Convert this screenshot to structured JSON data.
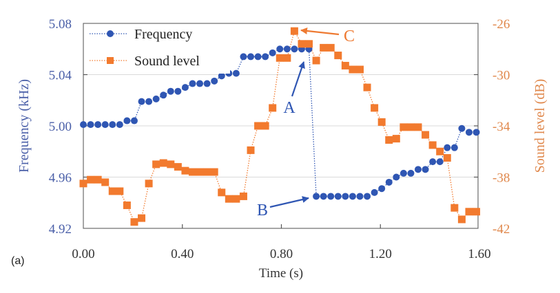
{
  "panel_label": "(a)",
  "chart_data": {
    "type": "line",
    "title": "",
    "xlabel": "Time (s)",
    "ylabel": "Frequency (kHz)",
    "y2label": "Sound level (dB)",
    "xlim": [
      0,
      1.6
    ],
    "ylim": [
      4.92,
      5.08
    ],
    "y2lim": [
      -42,
      -26
    ],
    "xticks": [
      "0.00",
      "0.40",
      "0.80",
      "1.20",
      "1.60"
    ],
    "xtick_values": [
      0,
      0.4,
      0.8,
      1.2,
      1.6
    ],
    "yticks": [
      "5.08",
      "5.04",
      "5.00",
      "4.96",
      "4.92"
    ],
    "ytick_values": [
      5.08,
      5.04,
      5.0,
      4.96,
      4.92
    ],
    "y2ticks": [
      "-26",
      "-30",
      "-34",
      "-38",
      "-42"
    ],
    "y2tick_values": [
      -26,
      -30,
      -34,
      -38,
      -42
    ],
    "grid": true,
    "legend_position": "top-left",
    "colors": {
      "frequency": "#2f56b3",
      "sound_level": "#f27a2e",
      "left_axis_text": "#4a5fa8",
      "right_axis_text": "#e0884c",
      "annotation_blue": "#2f56b3",
      "annotation_orange": "#ee7a32"
    },
    "time_step": 0.0294,
    "series": [
      {
        "name": "Frequency",
        "axis": "left",
        "marker": "circle",
        "values": [
          5.001,
          5.001,
          5.001,
          5.001,
          5.001,
          5.001,
          5.004,
          5.004,
          5.019,
          5.019,
          5.021,
          5.024,
          5.027,
          5.027,
          5.03,
          5.033,
          5.033,
          5.033,
          5.035,
          5.039,
          5.041,
          5.041,
          5.054,
          5.054,
          5.054,
          5.054,
          5.057,
          5.06,
          5.06,
          5.06,
          5.06,
          5.06,
          4.945,
          4.945,
          4.945,
          4.945,
          4.945,
          4.945,
          4.945,
          4.945,
          4.948,
          4.951,
          4.956,
          4.96,
          4.963,
          4.963,
          4.966,
          4.966,
          4.972,
          4.972,
          4.983,
          4.983,
          4.998,
          4.995,
          4.995
        ]
      },
      {
        "name": "Sound level",
        "axis": "right",
        "marker": "square",
        "values": [
          -38.5,
          -38.2,
          -38.2,
          -38.4,
          -39.1,
          -39.1,
          -40.2,
          -41.5,
          -41.2,
          -38.5,
          -37.0,
          -36.9,
          -37.0,
          -37.2,
          -37.5,
          -37.6,
          -37.6,
          -37.6,
          -37.6,
          -39.2,
          -39.7,
          -39.7,
          -39.5,
          -35.9,
          -34.0,
          -34.0,
          -32.6,
          -28.7,
          -28.7,
          -26.6,
          -27.6,
          -27.6,
          -28.9,
          -27.9,
          -27.9,
          -28.5,
          -29.3,
          -29.6,
          -29.6,
          -31.0,
          -32.6,
          -33.7,
          -35.1,
          -35.0,
          -34.1,
          -34.1,
          -34.1,
          -34.7,
          -35.5,
          -36.0,
          -36.5,
          -40.4,
          -41.3,
          -40.7,
          -40.7
        ]
      }
    ],
    "annotations": [
      {
        "label": "A",
        "series": "Frequency",
        "point_index": 31,
        "color_key": "annotation_blue"
      },
      {
        "label": "B",
        "series": "Frequency",
        "point_index": 32,
        "color_key": "annotation_blue"
      },
      {
        "label": "C",
        "series": "Sound level",
        "point_index": 29,
        "color_key": "annotation_orange"
      }
    ]
  }
}
